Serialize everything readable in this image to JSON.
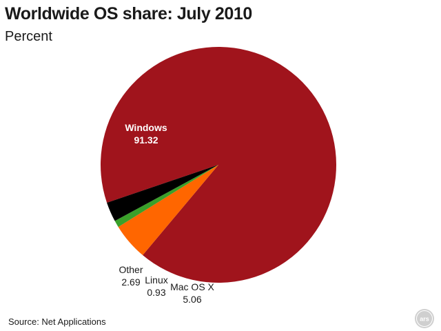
{
  "header": {
    "title": "Worldwide OS share: July 2010",
    "subtitle": "Percent"
  },
  "footer": {
    "source": "Source: Net Applications",
    "logo_text": "ars"
  },
  "chart_data": {
    "type": "pie",
    "title": "Worldwide OS share: July 2010",
    "subtitle": "Percent",
    "slices": [
      {
        "label": "Windows",
        "value": 91.32,
        "value_label": "91.32",
        "color": "#a0141c"
      },
      {
        "label": "Mac OS X",
        "value": 5.06,
        "value_label": "5.06",
        "color": "#ff6600"
      },
      {
        "label": "Linux",
        "value": 0.93,
        "value_label": "0.93",
        "color": "#3aa02a"
      },
      {
        "label": "Other",
        "value": 2.69,
        "value_label": "2.69",
        "color": "#000000"
      }
    ],
    "label_placement": [
      "inside",
      "outside",
      "outside",
      "outside"
    ],
    "legend": "none"
  }
}
